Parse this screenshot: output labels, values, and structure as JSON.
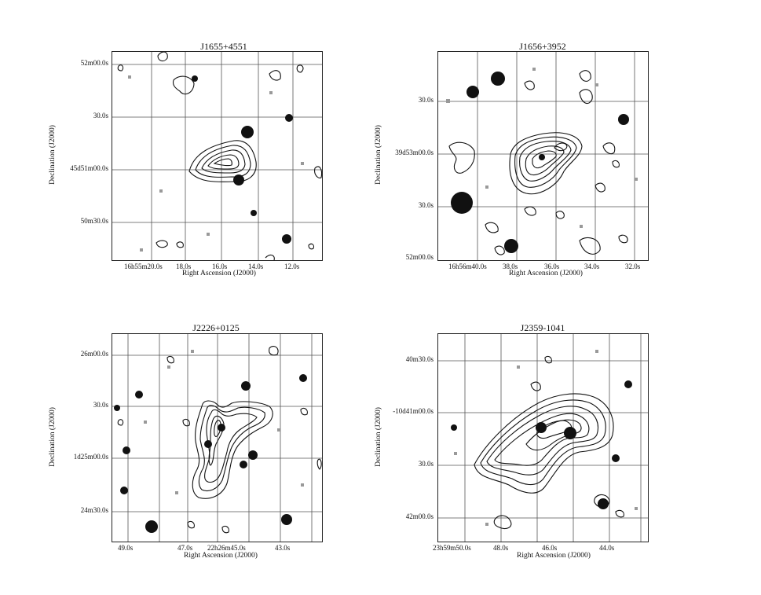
{
  "panels": [
    {
      "title": "J1655+4551",
      "ylabel": "Declination (J2000)",
      "xlabel": "Right Ascension (J2000)",
      "yticks": [
        "52m00.0s",
        "30.0s",
        "45d51m00.0s",
        "50m30.0s"
      ],
      "xticks": [
        "16h55m20.0s",
        "18.0s",
        "16.0s",
        "14.0s",
        "12.0s"
      ]
    },
    {
      "title": "J1656+3952",
      "ylabel": "Declination (J2000)",
      "xlabel": "Right Ascension (J2000)",
      "yticks": [
        "30.0s",
        "39d53m00.0s",
        "30.0s",
        "52m00.0s"
      ],
      "xticks": [
        "16h56m40.0s",
        "38.0s",
        "36.0s",
        "34.0s",
        "32.0s"
      ]
    },
    {
      "title": "J2226+0125",
      "ylabel": "Declination (J2000)",
      "xlabel": "Right Ascension (J2000)",
      "yticks": [
        "26m00.0s",
        "30.0s",
        "1d25m00.0s",
        "24m30.0s"
      ],
      "xticks": [
        "49.0s",
        "47.0s",
        "22h26m45.0s",
        "43.0s"
      ]
    },
    {
      "title": "J2359-1041",
      "ylabel": "Declination (J2000)",
      "xlabel": "Right Ascension (J2000)",
      "yticks": [
        "40m30.0s",
        "-10d41m00.0s",
        "30.0s",
        "42m00.0s"
      ],
      "xticks": [
        "23h59m50.0s",
        "48.0s",
        "46.0s",
        "44.0s"
      ]
    }
  ]
}
